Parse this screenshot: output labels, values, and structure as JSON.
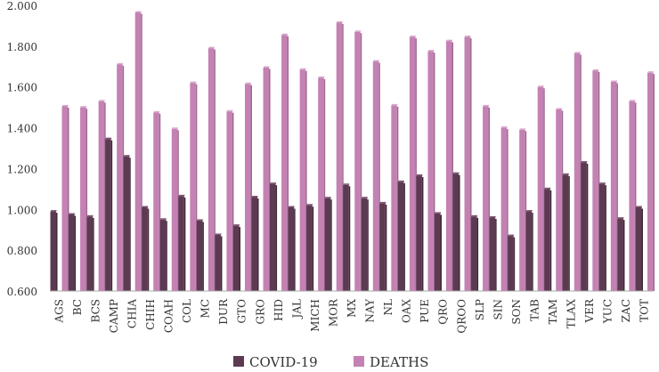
{
  "chart_data": {
    "type": "bar",
    "title": "",
    "xlabel": "",
    "ylabel": "",
    "ylim": [
      0.6,
      2.0
    ],
    "yticks": [
      "0.600",
      "0.800",
      "1.000",
      "1.200",
      "1.400",
      "1.600",
      "1.800",
      "2.000"
    ],
    "ytick_values": [
      0.6,
      0.8,
      1.0,
      1.2,
      1.4,
      1.6,
      1.8,
      2.0
    ],
    "grid": false,
    "legend_position": "bottom",
    "categories": [
      "AGS",
      "BC",
      "BCS",
      "CAMP",
      "CHIA",
      "CHIH",
      "COAH",
      "COL",
      "MC",
      "DUR",
      "GTO",
      "GRO",
      "HID",
      "JAL",
      "MICH",
      "MOR",
      "MX",
      "NAY",
      "NL",
      "OAX",
      "PUE",
      "QRO",
      "QROO",
      "SLP",
      "SIN",
      "SON",
      "TAB",
      "TAM",
      "TLAX",
      "VER",
      "YUC",
      "ZAC",
      "TOT"
    ],
    "series": [
      {
        "name": "COVID-19",
        "color": "#5c3a52",
        "values": [
          0.99,
          0.975,
          0.965,
          1.345,
          1.26,
          1.01,
          0.95,
          1.065,
          0.945,
          0.875,
          0.92,
          1.06,
          1.125,
          1.01,
          1.02,
          1.055,
          1.12,
          1.055,
          1.03,
          1.135,
          1.165,
          0.98,
          1.175,
          0.965,
          0.96,
          0.87,
          0.99,
          1.1,
          1.17,
          1.23,
          1.125,
          0.955,
          1.01
        ]
      },
      {
        "name": "DEATHS",
        "color": "#c382b3",
        "values": [
          1.505,
          1.5,
          1.53,
          1.71,
          1.965,
          1.475,
          1.395,
          1.62,
          1.79,
          1.48,
          1.615,
          1.695,
          1.855,
          1.685,
          1.645,
          1.915,
          1.87,
          1.725,
          1.51,
          1.845,
          1.775,
          1.825,
          1.845,
          1.505,
          1.4,
          1.39,
          1.6,
          1.49,
          1.765,
          1.68,
          1.625,
          1.53,
          1.67
        ]
      }
    ]
  }
}
